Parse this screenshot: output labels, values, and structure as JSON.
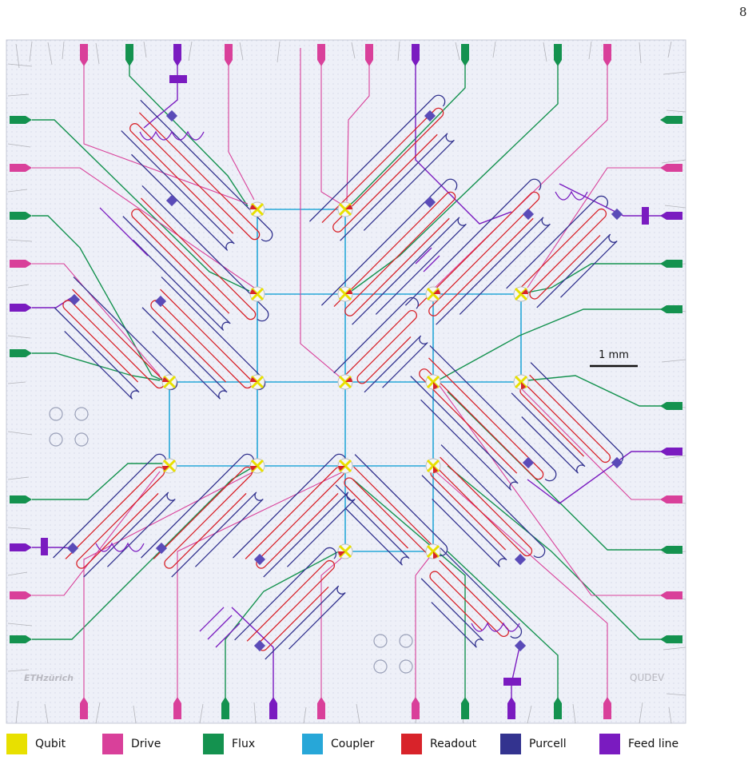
{
  "page_number": "8",
  "scale_bar": {
    "label": "1 mm"
  },
  "chip_labels": {
    "eth_logo": "ETHzürich",
    "qudev_logo": "QUDEV"
  },
  "colors": {
    "qubit": "#e8e000",
    "drive": "#d9409a",
    "flux": "#14924f",
    "coupler": "#27a7d8",
    "readout": "#d8232a",
    "purcell": "#33338f",
    "feed_line": "#7a1bc0",
    "chip_background": "#eef0f8"
  },
  "legend": [
    {
      "key": "qubit",
      "label": "Qubit"
    },
    {
      "key": "drive",
      "label": "Drive"
    },
    {
      "key": "flux",
      "label": "Flux"
    },
    {
      "key": "coupler",
      "label": "Coupler"
    },
    {
      "key": "readout",
      "label": "Readout"
    },
    {
      "key": "purcell",
      "label": "Purcell"
    },
    {
      "key": "feed_line",
      "label": "Feed line"
    }
  ]
}
